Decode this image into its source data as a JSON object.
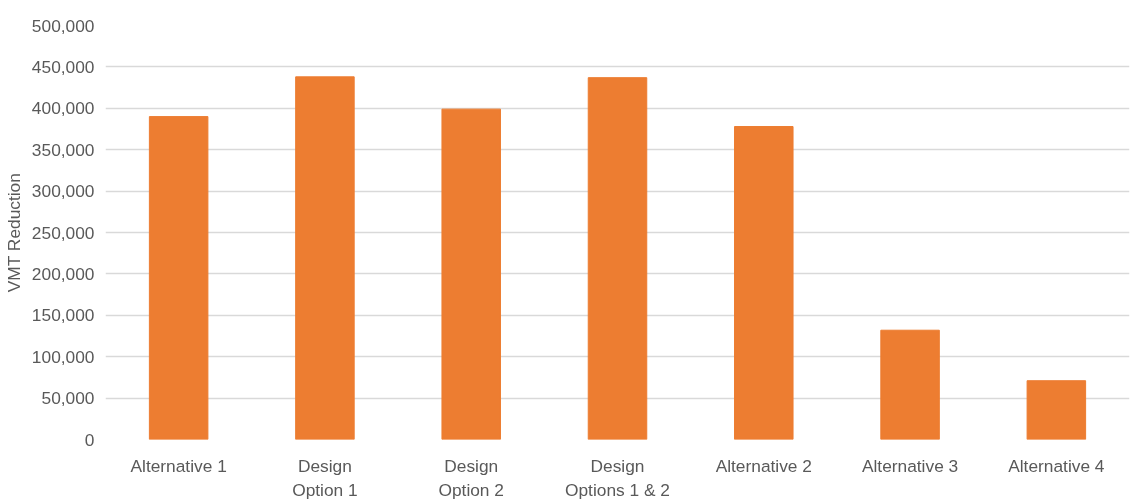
{
  "chart_data": {
    "type": "bar",
    "ylabel": "VMT Reduction",
    "categories": [
      "Alternative 1",
      "Design Option 1",
      "Design Option 2",
      "Design Options 1 & 2",
      "Alternative 2",
      "Alternative 3",
      "Alternative 4"
    ],
    "values": [
      390000,
      438000,
      399000,
      437000,
      378000,
      132000,
      71000
    ],
    "color": "#ed7d31",
    "ylim": [
      0,
      500000
    ],
    "yticks": [
      {
        "value": 0,
        "label": "0"
      },
      {
        "value": 50000,
        "label": "50,000"
      },
      {
        "value": 100000,
        "label": "100,000"
      },
      {
        "value": 150000,
        "label": "150,000"
      },
      {
        "value": 200000,
        "label": "200,000"
      },
      {
        "value": 250000,
        "label": "250,000"
      },
      {
        "value": 300000,
        "label": "300,000"
      },
      {
        "value": 350000,
        "label": "350,000"
      },
      {
        "value": 400000,
        "label": "400,000"
      },
      {
        "value": 450000,
        "label": "450,000"
      },
      {
        "value": 500000,
        "label": "500,000"
      }
    ],
    "grid": "y"
  }
}
